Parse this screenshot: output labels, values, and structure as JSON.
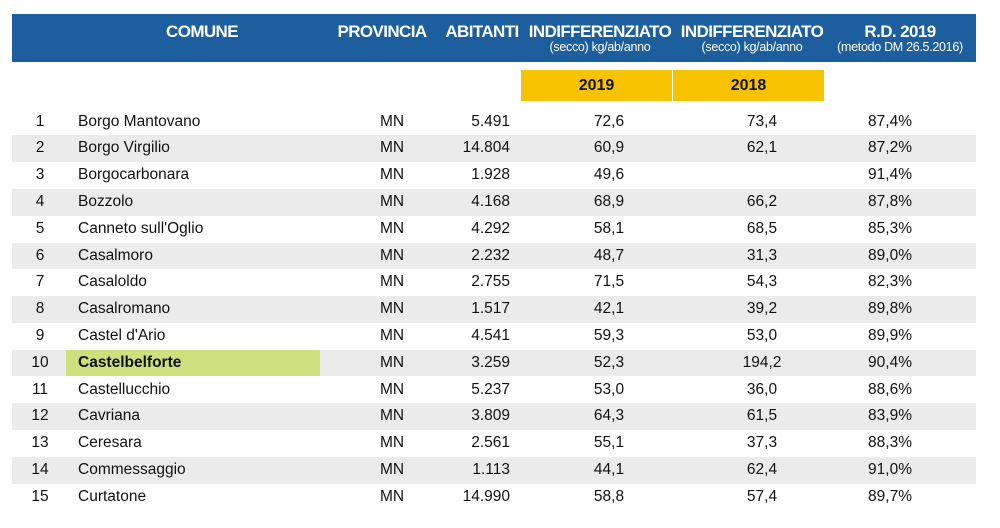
{
  "header": {
    "comune": "COMUNE",
    "provincia": "PROVINCIA",
    "abitanti": "ABITANTI",
    "indiff_2019_title": "INDIFFERENZIATO",
    "indiff_2019_sub": "(secco) kg/ab/anno",
    "indiff_2018_title": "INDIFFERENZIATO",
    "indiff_2018_sub": "(secco) kg/ab/anno",
    "rd_title": "R.D. 2019",
    "rd_sub": "(metodo DM 26.5.2016)"
  },
  "years": {
    "y2019": "2019",
    "y2018": "2018"
  },
  "colors": {
    "header_bg": "#1d5f9e",
    "year_bg": "#f7c300",
    "highlight": "#cde07e",
    "alt_row": "#ebebeb"
  },
  "rows": [
    {
      "n": "1",
      "comune": "Borgo Mantovano",
      "prov": "MN",
      "abitanti": "5.491",
      "i2019": "72,6",
      "i2018": "73,4",
      "rd": "87,4%"
    },
    {
      "n": "2",
      "comune": "Borgo Virgilio",
      "prov": "MN",
      "abitanti": "14.804",
      "i2019": "60,9",
      "i2018": "62,1",
      "rd": "87,2%"
    },
    {
      "n": "3",
      "comune": "Borgocarbonara",
      "prov": "MN",
      "abitanti": "1.928",
      "i2019": "49,6",
      "i2018": "",
      "rd": "91,4%"
    },
    {
      "n": "4",
      "comune": "Bozzolo",
      "prov": "MN",
      "abitanti": "4.168",
      "i2019": "68,9",
      "i2018": "66,2",
      "rd": "87,8%"
    },
    {
      "n": "5",
      "comune": "Canneto sull'Oglio",
      "prov": "MN",
      "abitanti": "4.292",
      "i2019": "58,1",
      "i2018": "68,5",
      "rd": "85,3%"
    },
    {
      "n": "6",
      "comune": "Casalmoro",
      "prov": "MN",
      "abitanti": "2.232",
      "i2019": "48,7",
      "i2018": "31,3",
      "rd": "89,0%"
    },
    {
      "n": "7",
      "comune": "Casaloldo",
      "prov": "MN",
      "abitanti": "2.755",
      "i2019": "71,5",
      "i2018": "54,3",
      "rd": "82,3%"
    },
    {
      "n": "8",
      "comune": "Casalromano",
      "prov": "MN",
      "abitanti": "1.517",
      "i2019": "42,1",
      "i2018": "39,2",
      "rd": "89,8%"
    },
    {
      "n": "9",
      "comune": "Castel d'Ario",
      "prov": "MN",
      "abitanti": "4.541",
      "i2019": "59,3",
      "i2018": "53,0",
      "rd": "89,9%"
    },
    {
      "n": "10",
      "comune": "Castelbelforte",
      "prov": "MN",
      "abitanti": "3.259",
      "i2019": "52,3",
      "i2018": "194,2",
      "rd": "90,4%"
    },
    {
      "n": "11",
      "comune": "Castellucchio",
      "prov": "MN",
      "abitanti": "5.237",
      "i2019": "53,0",
      "i2018": "36,0",
      "rd": "88,6%"
    },
    {
      "n": "12",
      "comune": "Cavriana",
      "prov": "MN",
      "abitanti": "3.809",
      "i2019": "64,3",
      "i2018": "61,5",
      "rd": "83,9%"
    },
    {
      "n": "13",
      "comune": "Ceresara",
      "prov": "MN",
      "abitanti": "2.561",
      "i2019": "55,1",
      "i2018": "37,3",
      "rd": "88,3%"
    },
    {
      "n": "14",
      "comune": "Commessaggio",
      "prov": "MN",
      "abitanti": "1.113",
      "i2019": "44,1",
      "i2018": "62,4",
      "rd": "91,0%"
    },
    {
      "n": "15",
      "comune": "Curtatone",
      "prov": "MN",
      "abitanti": "14.990",
      "i2019": "58,8",
      "i2018": "57,4",
      "rd": "89,7%"
    }
  ]
}
